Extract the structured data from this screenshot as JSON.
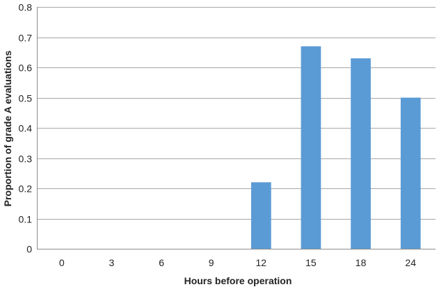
{
  "chart_data": {
    "type": "bar",
    "categories": [
      "0",
      "3",
      "6",
      "9",
      "12",
      "15",
      "18",
      "24"
    ],
    "values": [
      0,
      0,
      0,
      0,
      0.22,
      0.67,
      0.63,
      0.5
    ],
    "xlabel": "Hours before operation",
    "ylabel": "Proportion of grade A evaluations",
    "ylim": [
      0,
      0.8
    ],
    "yticks": [
      "0",
      "0.1",
      "0.2",
      "0.3",
      "0.4",
      "0.5",
      "0.6",
      "0.7",
      "0.8"
    ],
    "grid": true,
    "legend": "none",
    "bar_color": "#5b9bd5"
  }
}
